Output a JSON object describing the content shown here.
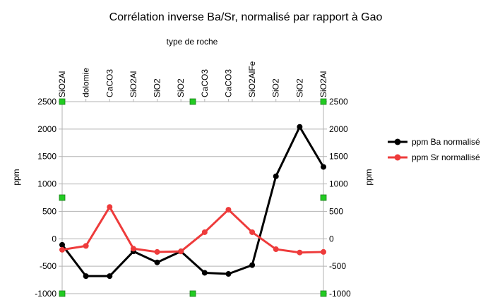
{
  "chart_data": {
    "type": "line",
    "title": "Corrélation inverse Ba/Sr, normalisé par rapport à Gao",
    "xlabel": "type de roche",
    "ylabel": "ppm",
    "y2label": "ppm",
    "categories": [
      "SiO2Al",
      "dolomie",
      "CaCO3",
      "SiO2Al",
      "SiO2",
      "SiO2",
      "CaCO3",
      "CaCO3",
      "SiO2AlFe",
      "SiO2",
      "SiO2",
      "SiO2Al"
    ],
    "ylim": [
      -1000,
      2500
    ],
    "yticks": [
      2500,
      2000,
      1500,
      1000,
      500,
      0,
      -500,
      -1000
    ],
    "grid": true,
    "legend_position": "right",
    "series": [
      {
        "name": "ppm Ba normalisé",
        "color": "#000000",
        "values": [
          -110,
          -680,
          -680,
          -230,
          -430,
          -230,
          -620,
          -640,
          -480,
          1140,
          2040,
          1310
        ]
      },
      {
        "name": "ppm Sr normallisé",
        "color": "#ee3b3b",
        "values": [
          -200,
          -130,
          580,
          -180,
          -240,
          -230,
          120,
          530,
          120,
          -190,
          -250,
          -240
        ]
      }
    ],
    "marker_color": "#22cc22"
  }
}
